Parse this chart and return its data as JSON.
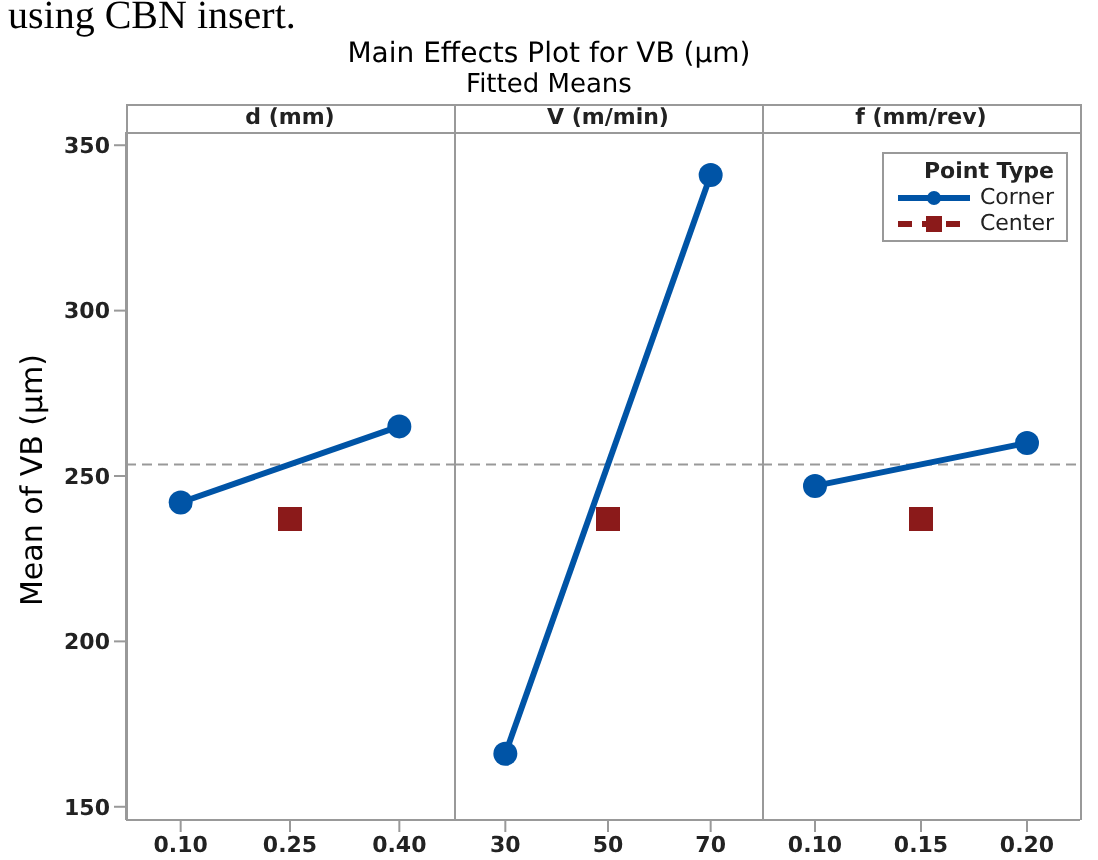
{
  "chart_data": [
    {
      "type": "line",
      "title": "d (mm)",
      "annotations": [
        "using CBN insert.",
        "Main Effects Plot for VB (µm)",
        "Fitted Means"
      ],
      "ylabel": "Mean of VB (µm)",
      "categories": [
        "0.10",
        "0.25",
        "0.40"
      ],
      "ylim": [
        146,
        354
      ],
      "yticks": [
        150,
        200,
        250,
        300,
        350
      ],
      "series": [
        {
          "type": "line",
          "color": "#0054a6",
          "marker": "circle",
          "values": [
            242,
            null,
            265
          ]
        },
        {
          "type": "scatter",
          "color": "#8b1a1a",
          "marker": "square",
          "values": [
            null,
            237,
            null
          ]
        }
      ],
      "ref_lines": [
        {
          "axis": "y",
          "value": 253.5,
          "color": "#999999",
          "line_style": "dashed"
        }
      ]
    },
    {
      "type": "line",
      "title": "V (m/min)",
      "categories": [
        "30",
        "50",
        "70"
      ],
      "ylim": [
        146,
        354
      ],
      "yticks": [
        150,
        200,
        250,
        300,
        350
      ],
      "tick_labels": "x",
      "series": [
        {
          "type": "line",
          "color": "#0054a6",
          "marker": "circle",
          "values": [
            166,
            null,
            341
          ]
        },
        {
          "type": "scatter",
          "color": "#8b1a1a",
          "marker": "square",
          "values": [
            null,
            237,
            null
          ]
        }
      ],
      "ref_lines": [
        {
          "axis": "y",
          "value": 253.5,
          "color": "#999999",
          "line_style": "dashed"
        }
      ]
    },
    {
      "type": "line",
      "title": "f (mm/rev)",
      "categories": [
        "0.10",
        "0.15",
        "0.20"
      ],
      "ylim": [
        146,
        354
      ],
      "yticks": [
        150,
        200,
        250,
        300,
        350
      ],
      "tick_labels": "x",
      "legend": "top right",
      "legend_title": "Point Type",
      "series": [
        {
          "name": "Corner",
          "type": "line",
          "color": "#0054a6",
          "marker": "circle",
          "values": [
            247,
            null,
            260
          ]
        },
        {
          "name": "Center",
          "type": "scatter",
          "color": "#8b1a1a",
          "marker": "square",
          "values": [
            null,
            237,
            null
          ]
        }
      ],
      "ref_lines": [
        {
          "axis": "y",
          "value": 253.5,
          "color": "#999999",
          "line_style": "dashed"
        }
      ]
    }
  ]
}
